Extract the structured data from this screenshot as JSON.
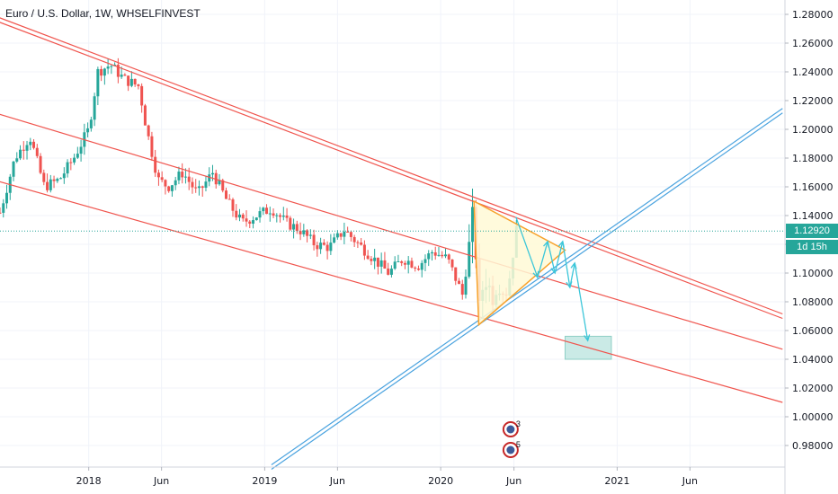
{
  "header": {
    "title": "Euro / U.S. Dollar, 1W, WHSELFINVEST"
  },
  "price_label": {
    "value": "1.12920",
    "countdown": "1d 15h"
  },
  "events": [
    {
      "count": "3"
    },
    {
      "count": "5"
    }
  ],
  "colors": {
    "up": "#26a69a",
    "down": "#ef5350",
    "channel": "#f0554e",
    "support": "#4aa3df",
    "triangle_fill": "#fff9d6",
    "triangle_edge": "#f7a22b",
    "arrow": "#3bc6d9",
    "target_box": "#b8e3dd",
    "last_price": "#26a69a"
  },
  "chart_data": {
    "type": "candlestick",
    "title": "Euro / U.S. Dollar, 1W, WHSELFINVEST",
    "y_axis": {
      "position": "right",
      "ylim": [
        0.965,
        1.29
      ],
      "ticks": [
        "1.28000",
        "1.26000",
        "1.24000",
        "1.22000",
        "1.20000",
        "1.18000",
        "1.16000",
        "1.14000",
        "1.12000",
        "1.10000",
        "1.08000",
        "1.06000",
        "1.04000",
        "1.02000",
        "1.00000",
        "0.98000"
      ]
    },
    "x_axis": {
      "range": [
        "2017-07-01",
        "2021-12-15"
      ],
      "ticks": [
        {
          "label": "2018",
          "date": "2018-01-01"
        },
        {
          "label": "Jun",
          "date": "2018-06-01"
        },
        {
          "label": "2019",
          "date": "2019-01-01"
        },
        {
          "label": "Jun",
          "date": "2019-06-01"
        },
        {
          "label": "2020",
          "date": "2020-01-01"
        },
        {
          "label": "Jun",
          "date": "2020-06-01"
        },
        {
          "label": "2021",
          "date": "2021-01-01"
        },
        {
          "label": "Jun",
          "date": "2021-06-01"
        }
      ]
    },
    "grid": true,
    "last_price": 1.1292,
    "price_series": [
      [
        "2017-07-01",
        1.142
      ],
      [
        "2017-08-01",
        1.18
      ],
      [
        "2017-09-01",
        1.195
      ],
      [
        "2017-10-01",
        1.16
      ],
      [
        "2017-11-01",
        1.165
      ],
      [
        "2017-12-01",
        1.18
      ],
      [
        "2018-01-01",
        1.2
      ],
      [
        "2018-01-20",
        1.24
      ],
      [
        "2018-02-15",
        1.245
      ],
      [
        "2018-03-15",
        1.235
      ],
      [
        "2018-04-15",
        1.23
      ],
      [
        "2018-05-01",
        1.2
      ],
      [
        "2018-05-25",
        1.165
      ],
      [
        "2018-06-15",
        1.16
      ],
      [
        "2018-07-15",
        1.17
      ],
      [
        "2018-08-15",
        1.155
      ],
      [
        "2018-09-15",
        1.17
      ],
      [
        "2018-10-15",
        1.15
      ],
      [
        "2018-11-15",
        1.135
      ],
      [
        "2018-12-15",
        1.14
      ],
      [
        "2019-01-15",
        1.145
      ],
      [
        "2019-02-15",
        1.135
      ],
      [
        "2019-03-15",
        1.13
      ],
      [
        "2019-04-15",
        1.12
      ],
      [
        "2019-05-15",
        1.118
      ],
      [
        "2019-06-15",
        1.13
      ],
      [
        "2019-07-15",
        1.12
      ],
      [
        "2019-08-15",
        1.11
      ],
      [
        "2019-09-15",
        1.1
      ],
      [
        "2019-10-15",
        1.11
      ],
      [
        "2019-11-15",
        1.105
      ],
      [
        "2019-12-15",
        1.115
      ],
      [
        "2020-01-15",
        1.11
      ],
      [
        "2020-02-15",
        1.085
      ],
      [
        "2020-03-01",
        1.12
      ],
      [
        "2020-03-10",
        1.145
      ],
      [
        "2020-03-20",
        1.07
      ],
      [
        "2020-04-01",
        1.1
      ],
      [
        "2020-04-15",
        1.085
      ],
      [
        "2020-05-01",
        1.09
      ],
      [
        "2020-05-15",
        1.085
      ],
      [
        "2020-05-25",
        1.1
      ],
      [
        "2020-06-05",
        1.13
      ],
      [
        "2020-06-10",
        1.1292
      ]
    ],
    "trendlines": [
      {
        "kind": "channel_top_double",
        "from": [
          "2017-06-15",
          1.278
        ],
        "to": [
          "2021-12-10",
          1.07
        ]
      },
      {
        "kind": "channel_mid",
        "from": [
          "2017-06-15",
          1.212
        ],
        "to": [
          "2021-12-10",
          1.047
        ]
      },
      {
        "kind": "channel_bottom",
        "from": [
          "2017-06-15",
          1.165
        ],
        "to": [
          "2021-12-10",
          1.01
        ]
      },
      {
        "kind": "support_double",
        "from": [
          "2019-01-15",
          0.965
        ],
        "to": [
          "2021-12-10",
          1.213
        ]
      }
    ],
    "triangle": [
      [
        "2020-03-10",
        1.15
      ],
      [
        "2020-09-15",
        1.116
      ],
      [
        "2020-03-20",
        1.064
      ]
    ],
    "arrow_path": [
      [
        "2020-06-05",
        1.139
      ],
      [
        "2020-07-20",
        1.097
      ],
      [
        "2020-08-10",
        1.122
      ],
      [
        "2020-08-25",
        1.1
      ],
      [
        "2020-09-10",
        1.122
      ],
      [
        "2020-09-25",
        1.09
      ],
      [
        "2020-10-05",
        1.107
      ],
      [
        "2020-11-01",
        1.053
      ]
    ],
    "target_zone": {
      "x_from": "2020-09-15",
      "x_to": "2020-12-20",
      "y_from": 1.04,
      "y_to": 1.056
    },
    "event_markers": [
      {
        "date": "2020-05-25",
        "count": "3"
      },
      {
        "date": "2020-05-25",
        "count": "5"
      }
    ]
  }
}
